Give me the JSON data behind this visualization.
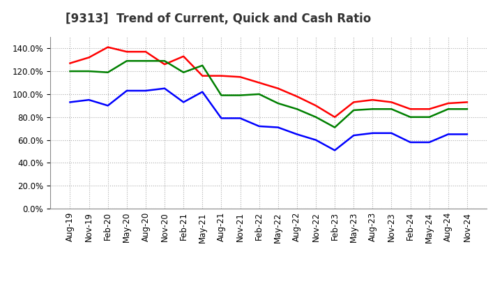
{
  "title": "[9313]  Trend of Current, Quick and Cash Ratio",
  "x_labels": [
    "Aug-19",
    "Nov-19",
    "Feb-20",
    "May-20",
    "Aug-20",
    "Nov-20",
    "Feb-21",
    "May-21",
    "Aug-21",
    "Nov-21",
    "Feb-22",
    "May-22",
    "Aug-22",
    "Nov-22",
    "Feb-23",
    "May-23",
    "Aug-23",
    "Nov-23",
    "Feb-24",
    "May-24",
    "Aug-24",
    "Nov-24"
  ],
  "current_ratio": [
    1.27,
    1.32,
    1.41,
    1.37,
    1.37,
    1.26,
    1.33,
    1.16,
    1.16,
    1.15,
    1.1,
    1.05,
    0.98,
    0.9,
    0.8,
    0.93,
    0.95,
    0.93,
    0.87,
    0.87,
    0.92,
    0.93
  ],
  "quick_ratio": [
    1.2,
    1.2,
    1.19,
    1.29,
    1.29,
    1.29,
    1.19,
    1.25,
    0.99,
    0.99,
    1.0,
    0.92,
    0.87,
    0.8,
    0.71,
    0.86,
    0.87,
    0.87,
    0.8,
    0.8,
    0.87,
    0.87
  ],
  "cash_ratio": [
    0.93,
    0.95,
    0.9,
    1.03,
    1.03,
    1.05,
    0.93,
    1.02,
    0.79,
    0.79,
    0.72,
    0.71,
    0.65,
    0.6,
    0.51,
    0.64,
    0.66,
    0.66,
    0.58,
    0.58,
    0.65,
    0.65
  ],
  "current_color": "#FF0000",
  "quick_color": "#008000",
  "cash_color": "#0000FF",
  "ylim": [
    0.0,
    1.5
  ],
  "yticks": [
    0.0,
    0.2,
    0.4,
    0.6,
    0.8,
    1.0,
    1.2,
    1.4
  ],
  "background_color": "#FFFFFF",
  "plot_bg_color": "#FFFFFF",
  "title_fontsize": 12,
  "tick_fontsize": 8.5,
  "legend_fontsize": 9.5,
  "line_width": 1.8
}
